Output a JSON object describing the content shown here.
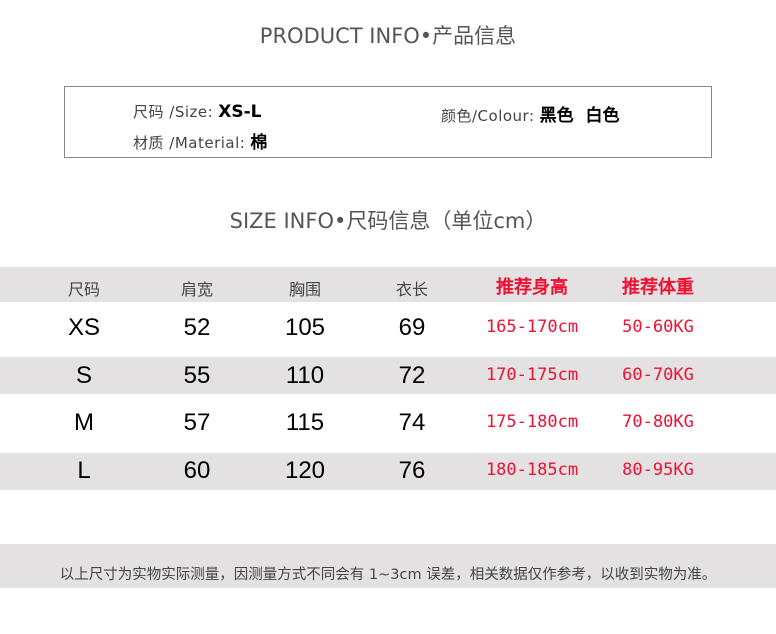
{
  "product_info": {
    "title": "PRODUCT INFO•产品信息",
    "size_label": "尺码 /Size:",
    "size_value": "XS-L",
    "colour_label": "颜色/Colour:",
    "colour_value": "黑色  白色",
    "material_label": "材质 /Material:",
    "material_value": "棉"
  },
  "size_info": {
    "title": "SIZE INFO•尺码信息（单位cm）",
    "headers": [
      "尺码",
      "肩宽",
      "胸围",
      "衣长",
      "推荐身高",
      "推荐体重"
    ],
    "rows": [
      [
        "XS",
        "52",
        "105",
        "69",
        "165-170cm",
        "50-60KG"
      ],
      [
        "S",
        "55",
        "110",
        "72",
        "170-175cm",
        "60-70KG"
      ],
      [
        "M",
        "57",
        "115",
        "74",
        "175-180cm",
        "70-80KG"
      ],
      [
        "L",
        "60",
        "120",
        "76",
        "180-185cm",
        "80-95KG"
      ]
    ]
  },
  "footer": {
    "note": "以上尺寸为实物实际测量，因测量方式不同会有 1~3cm 误差，相关数据仅作参考，以收到实物为准。"
  },
  "colors": {
    "accent_red": "#ee1133",
    "band_gray": "#e3e1e2"
  }
}
